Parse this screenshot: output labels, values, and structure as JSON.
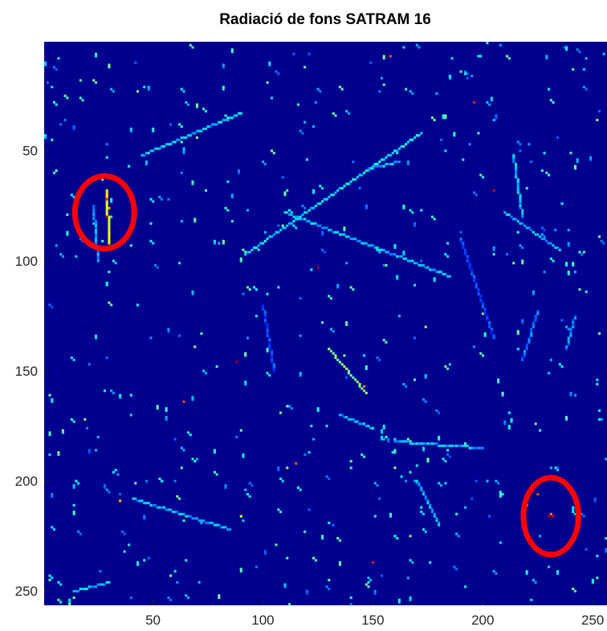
{
  "chart_data": {
    "type": "heatmap",
    "title": "Radiació de fons SATRAM 16",
    "xlabel": "",
    "ylabel": "",
    "x_range": [
      0.5,
      256.5
    ],
    "y_range": [
      0.5,
      256.5
    ],
    "y_reversed": true,
    "colormap": "jet",
    "background_value": 0,
    "x_ticks": [
      50,
      100,
      150,
      200,
      250
    ],
    "y_ticks": [
      50,
      100,
      150,
      200,
      250
    ],
    "tracks": [
      {
        "from": [
          45,
          52
        ],
        "to": [
          90,
          33
        ],
        "level": 0.32
      },
      {
        "from": [
          92,
          97
        ],
        "to": [
          172,
          42
        ],
        "level": 0.35
      },
      {
        "from": [
          110,
          78
        ],
        "to": [
          185,
          107
        ],
        "level": 0.3
      },
      {
        "from": [
          130,
          140
        ],
        "to": [
          147,
          160
        ],
        "level": 0.5
      },
      {
        "from": [
          29,
          68
        ],
        "to": [
          30,
          92
        ],
        "level": 0.6
      },
      {
        "from": [
          23,
          75
        ],
        "to": [
          25,
          100
        ],
        "level": 0.28
      },
      {
        "from": [
          41,
          208
        ],
        "to": [
          85,
          222
        ],
        "level": 0.3
      },
      {
        "from": [
          160,
          182
        ],
        "to": [
          200,
          185
        ],
        "level": 0.3
      },
      {
        "from": [
          162,
          55
        ],
        "to": [
          148,
          58
        ],
        "level": 0.3
      },
      {
        "from": [
          225,
          123
        ],
        "to": [
          218,
          145
        ],
        "level": 0.25
      },
      {
        "from": [
          242,
          125
        ],
        "to": [
          238,
          140
        ],
        "level": 0.25
      },
      {
        "from": [
          190,
          90
        ],
        "to": [
          205,
          135
        ],
        "level": 0.2
      },
      {
        "from": [
          100,
          120
        ],
        "to": [
          105,
          150
        ],
        "level": 0.2
      },
      {
        "from": [
          170,
          200
        ],
        "to": [
          180,
          220
        ],
        "level": 0.3
      },
      {
        "from": [
          14,
          250
        ],
        "to": [
          30,
          246
        ],
        "level": 0.3
      },
      {
        "from": [
          214,
          52
        ],
        "to": [
          218,
          80
        ],
        "level": 0.3
      },
      {
        "from": [
          210,
          78
        ],
        "to": [
          235,
          95
        ],
        "level": 0.3
      },
      {
        "from": [
          135,
          170
        ],
        "to": [
          150,
          176
        ],
        "level": 0.3
      }
    ],
    "hot_spots": [
      {
        "x": 29,
        "y": 72,
        "level": 0.85
      },
      {
        "x": 29,
        "y": 80,
        "level": 0.95
      },
      {
        "x": 30,
        "y": 76,
        "level": 0.7
      },
      {
        "x": 230,
        "y": 216,
        "level": 0.95
      },
      {
        "x": 232,
        "y": 216,
        "level": 0.9
      },
      {
        "x": 231,
        "y": 215,
        "level": 0.75
      },
      {
        "x": 146,
        "y": 157,
        "level": 0.75
      },
      {
        "x": 88,
        "y": 146,
        "level": 0.95
      },
      {
        "x": 205,
        "y": 68,
        "level": 0.9
      },
      {
        "x": 125,
        "y": 103,
        "level": 0.95
      },
      {
        "x": 150,
        "y": 237,
        "level": 0.85
      },
      {
        "x": 115,
        "y": 192,
        "level": 0.8
      },
      {
        "x": 64,
        "y": 164,
        "level": 0.8
      },
      {
        "x": 225,
        "y": 206,
        "level": 0.8
      },
      {
        "x": 35,
        "y": 209,
        "level": 0.7
      },
      {
        "x": 90,
        "y": 216,
        "level": 0.6
      },
      {
        "x": 196,
        "y": 28,
        "level": 0.85
      },
      {
        "x": 158,
        "y": 7,
        "level": 0.8
      }
    ],
    "annotations": [
      {
        "shape": "ellipse",
        "color": "#ff0000",
        "center": [
          28,
          78
        ],
        "radii": [
          13.5,
          16.5
        ]
      },
      {
        "shape": "ellipse",
        "color": "#ff0000",
        "center": [
          231,
          216
        ],
        "radii": [
          12.5,
          17.5
        ]
      }
    ]
  }
}
